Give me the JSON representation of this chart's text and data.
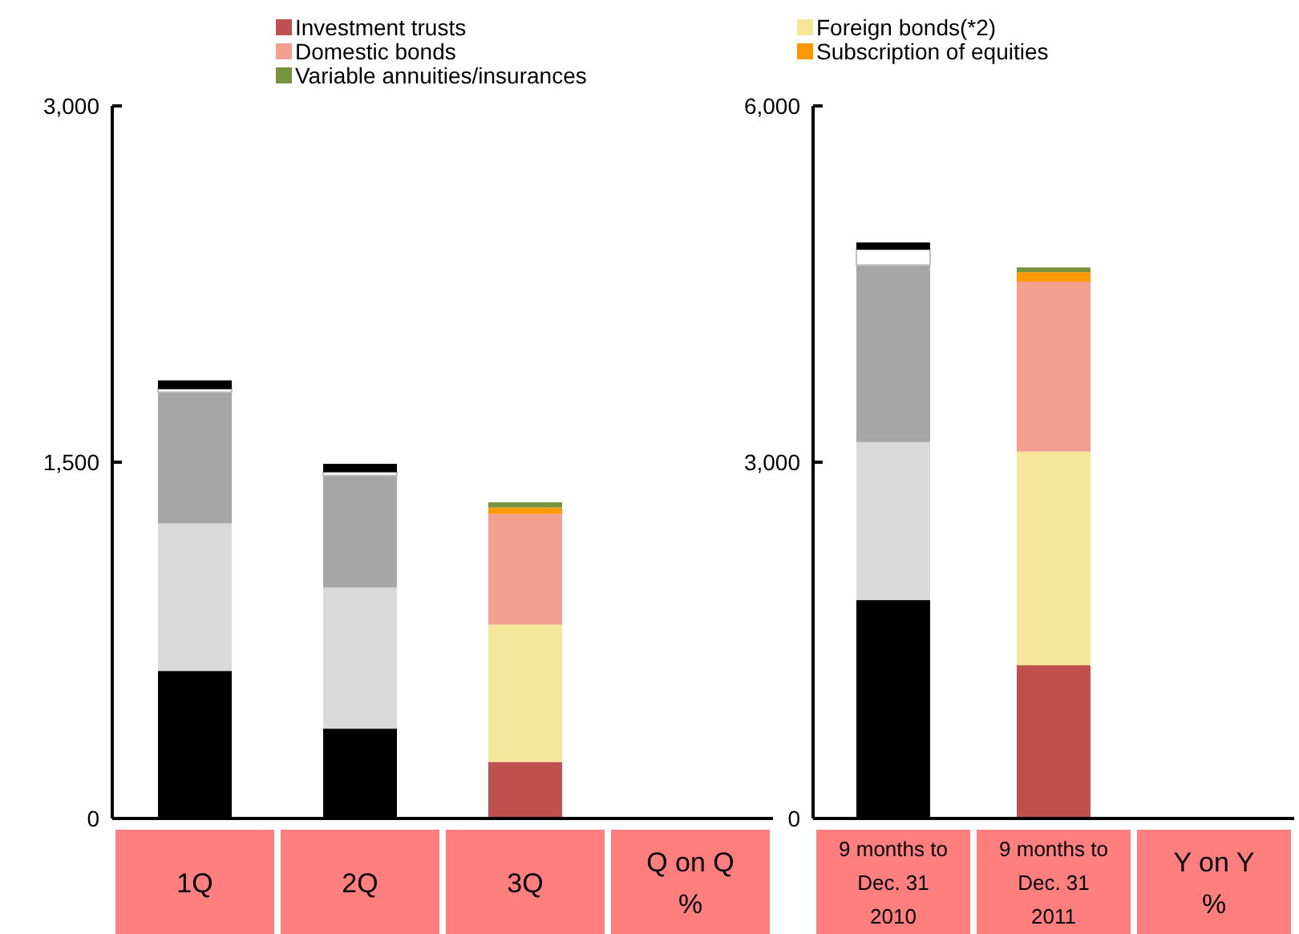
{
  "chart_data": [
    {
      "type": "bar",
      "stacked": true,
      "legend": "top",
      "categories": [
        "1Q",
        "2Q",
        "3Q",
        "Q on Q\n%"
      ],
      "ylim": [
        0,
        3000
      ],
      "yticks": [
        0,
        {
          "value": 1500,
          "label": "1,500"
        },
        {
          "value": 3000,
          "label": "3,000"
        }
      ],
      "series": [
        {
          "name": "Investment trusts",
          "color": "#c0504d",
          "colors": [
            "#000000",
            "#000000",
            "#c0504d",
            null
          ],
          "values": [
            621,
            378,
            238,
            null
          ]
        },
        {
          "name": "Foreign bonds(*2)",
          "color": "#f5e699",
          "colors": [
            "#d9d9d9",
            "#d9d9d9",
            "#f5e699",
            null
          ],
          "values": [
            621,
            594,
            578,
            null
          ]
        },
        {
          "name": "Domestic bonds",
          "color": "#f49f8f",
          "colors": [
            "#a6a6a6",
            "#a6a6a6",
            "#f49f8f",
            null
          ],
          "values": [
            553,
            472,
            466,
            null
          ]
        },
        {
          "name": "Subscription of equities",
          "color": "#ff9900",
          "colors": [
            "#ffffff",
            "#ffffff",
            "#ff9900",
            null
          ],
          "values": [
            13,
            14,
            27,
            null
          ]
        },
        {
          "name": "Variable annuities/insurances",
          "color": "#77933c",
          "colors": [
            "#000000",
            "#000000",
            "#77933c",
            null
          ],
          "values": [
            36,
            35,
            22,
            null
          ]
        }
      ]
    },
    {
      "type": "bar",
      "stacked": true,
      "categories": [
        "9 months to\nDec. 31\n2010",
        "9 months to\nDec. 31\n2011",
        "Y on Y\n%"
      ],
      "ylim": [
        0,
        6000
      ],
      "yticks": [
        0,
        {
          "value": 3000,
          "label": "3,000"
        },
        {
          "value": 6000,
          "label": "6,000"
        }
      ],
      "series": [
        {
          "colors": [
            "#000000",
            "#c0504d",
            null
          ],
          "values": [
            1840,
            1290,
            null
          ]
        },
        {
          "colors": [
            "#d9d9d9",
            "#f5e699",
            null
          ],
          "values": [
            1330,
            1800,
            null
          ]
        },
        {
          "colors": [
            "#a6a6a6",
            "#f49f8f",
            null
          ],
          "values": [
            1490,
            1430,
            null
          ]
        },
        {
          "colors": [
            "#ffffff",
            "#ff9900",
            null
          ],
          "values": [
            130,
            80,
            null
          ]
        },
        {
          "colors": [
            "#000000",
            "#77933c",
            null
          ],
          "values": [
            60,
            40,
            null
          ]
        }
      ]
    }
  ]
}
